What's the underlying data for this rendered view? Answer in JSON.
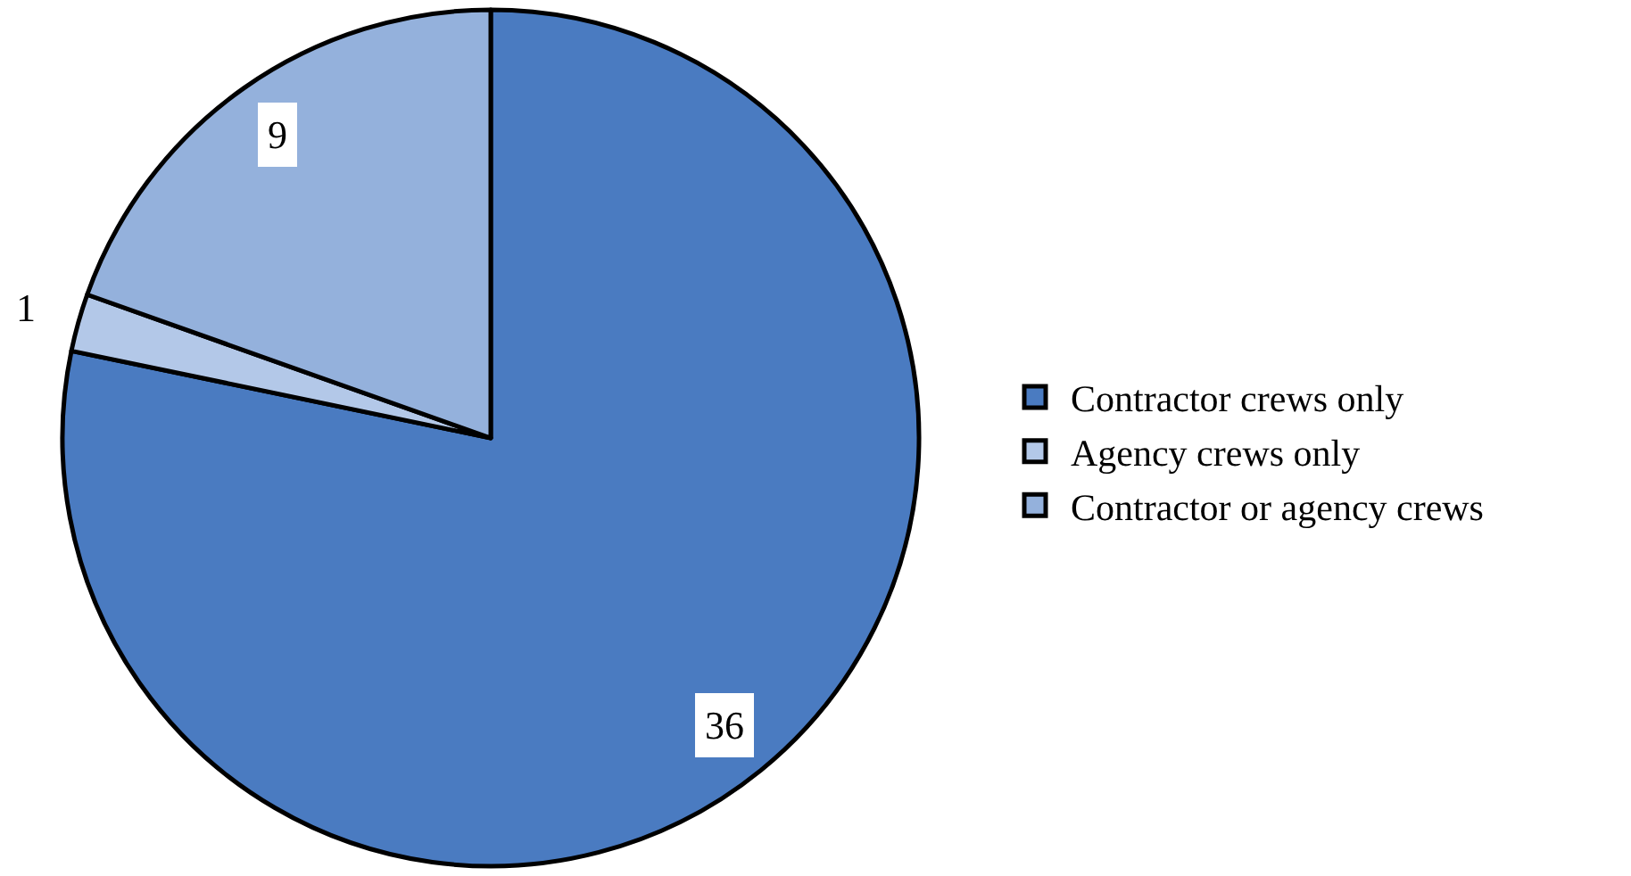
{
  "chart_data": {
    "type": "pie",
    "categories": [
      "Contractor crews only",
      "Agency crews only",
      "Contractor or agency crews"
    ],
    "values": [
      36,
      1,
      9
    ],
    "colors": [
      "#4a7bc1",
      "#b3c8e8",
      "#94b1dc"
    ],
    "data_labels": true,
    "legend": "right"
  }
}
